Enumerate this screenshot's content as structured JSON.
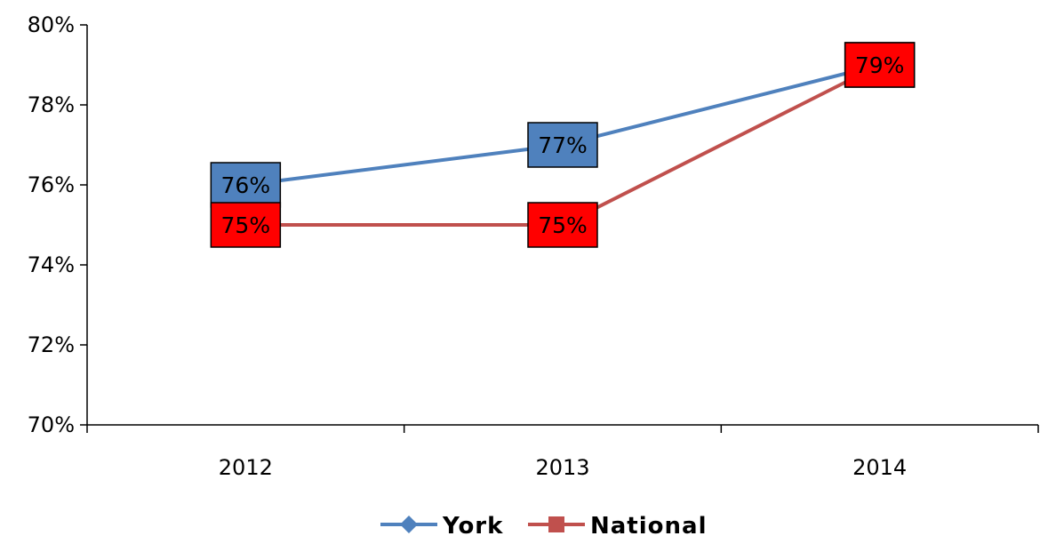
{
  "chart_data": {
    "type": "line",
    "categories": [
      "2012",
      "2013",
      "2014"
    ],
    "series": [
      {
        "name": "York",
        "values": [
          76,
          77,
          79
        ],
        "labels": [
          "76%",
          "77%",
          "79%"
        ],
        "color": "#4F81BD",
        "marker": "diamond",
        "label_box_color": "#4F81BD"
      },
      {
        "name": "National",
        "values": [
          75,
          75,
          79
        ],
        "labels": [
          "75%",
          "75%",
          "79%"
        ],
        "color": "#C0504D",
        "marker": "square",
        "label_box_color": "#FF0000"
      }
    ],
    "y_ticks": [
      "70%",
      "72%",
      "74%",
      "76%",
      "78%",
      "80%"
    ],
    "ylim": [
      70,
      80
    ],
    "y_unit": "%",
    "grid": false,
    "legend_position": "bottom",
    "title": "",
    "xlabel": "",
    "ylabel": ""
  }
}
